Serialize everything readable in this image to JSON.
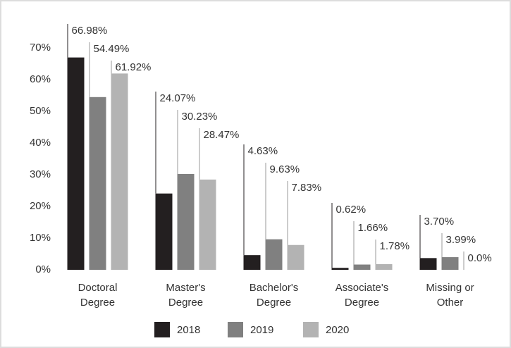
{
  "chart_data": {
    "type": "bar",
    "categories": [
      "Doctoral Degree",
      "Master's Degree",
      "Bachelor's Degree",
      "Associate's Degree",
      "Missing or Other"
    ],
    "series": [
      {
        "name": "2018",
        "color": "#231f20",
        "values": [
          66.98,
          24.07,
          4.63,
          0.62,
          3.7
        ],
        "value_labels": [
          "66.98%",
          "24.07%",
          "4.63%",
          "0.62%",
          "3.70%"
        ]
      },
      {
        "name": "2019",
        "color": "#808080",
        "values": [
          54.49,
          30.23,
          9.63,
          1.66,
          3.99
        ],
        "value_labels": [
          "54.49%",
          "30.23%",
          "9.63%",
          "1.66%",
          "3.99%"
        ]
      },
      {
        "name": "2020",
        "color": "#b3b3b3",
        "values": [
          61.92,
          28.47,
          7.83,
          1.78,
          0.0
        ],
        "value_labels": [
          "61.92%",
          "28.47%",
          "7.83%",
          "1.78%",
          "0.0%"
        ]
      }
    ],
    "ylim": [
      0,
      70
    ],
    "yticks": [
      {
        "value": 0,
        "label": "0%"
      },
      {
        "value": 10,
        "label": "10%"
      },
      {
        "value": 20,
        "label": "20%"
      },
      {
        "value": 30,
        "label": "30%"
      },
      {
        "value": 40,
        "label": "40%"
      },
      {
        "value": 50,
        "label": "50%"
      },
      {
        "value": 60,
        "label": "60%"
      },
      {
        "value": 70,
        "label": "70%"
      }
    ],
    "legend": "bottom"
  }
}
